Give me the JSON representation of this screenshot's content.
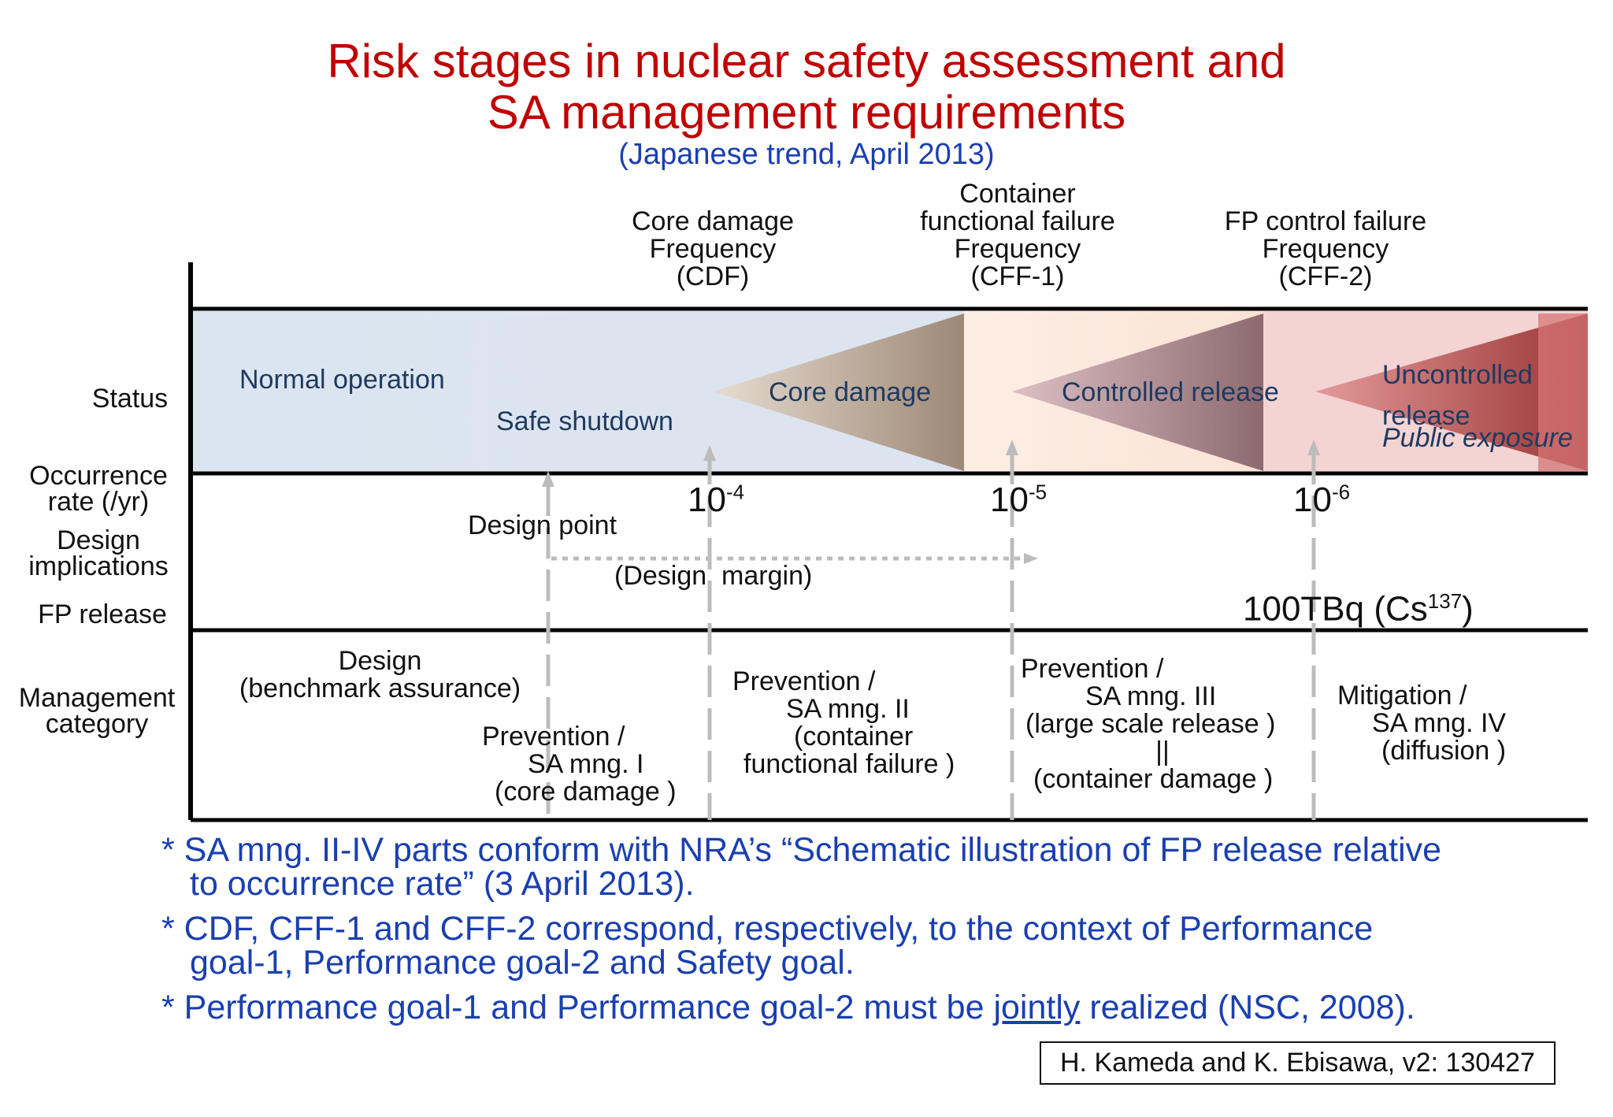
{
  "title": {
    "line1": "Risk stages in nuclear safety assessment and",
    "line2": "SA management requirements",
    "subtitle": "(Japanese trend, April 2013)"
  },
  "headers": {
    "cdf": [
      "Core damage",
      "Frequency",
      "(CDF)"
    ],
    "cff1": [
      "Container",
      "functional failure",
      "Frequency",
      "(CFF-1)"
    ],
    "cff2": [
      "FP control  failure",
      "Frequency",
      "(CFF-2)"
    ]
  },
  "row_labels": {
    "status": "Status",
    "occurrence": [
      "Occurrence",
      "rate (/yr)"
    ],
    "design": [
      "Design",
      "implications"
    ],
    "fp_release": "FP release",
    "management": [
      "Management",
      "category"
    ]
  },
  "status_band": {
    "normal_operation": "Normal  operation",
    "safe_shutdown": "Safe shutdown",
    "core_damage": "Core damage",
    "controlled_release": "Controlled release",
    "uncontrolled_release": [
      "Uncontrolled",
      "release"
    ],
    "public_exposure": "Public exposure"
  },
  "rates": {
    "r1_base": "10",
    "r1_exp": "-4",
    "r2_base": "10",
    "r2_exp": "-5",
    "r3_base": "10",
    "r3_exp": "-6"
  },
  "design": {
    "design_point": "Design point",
    "design_margin": "(Design  margin)"
  },
  "fp": {
    "value": "100TBq",
    "nuclide_open": "(Cs",
    "nuclide_sup": "137",
    "nuclide_close": ")"
  },
  "management": {
    "design": [
      "Design",
      "(benchmark assurance)"
    ],
    "sa1": [
      "Prevention /",
      "SA mng. I",
      "(core damage )"
    ],
    "sa2": [
      "Prevention /",
      "SA mng. II",
      "(container",
      "functional failure )"
    ],
    "sa3": [
      "Prevention /",
      "SA mng. III",
      "(large scale release )",
      "||",
      "(container damage )"
    ],
    "sa4": [
      "Mitigation /",
      "SA mng. IV",
      "(diffusion )"
    ]
  },
  "notes": {
    "n1_a": "* SA mng. II-IV parts conform with NRA’s “Schematic illustration of FP release relative",
    "n1_b": "to occurrence rate” (3 April 2013).",
    "n2_a": "* CDF, CFF-1 and CFF-2 correspond, respectively, to the context of  Performance",
    "n2_b": "goal-1, Performance goal-2 and Safety goal.",
    "n3_pre": "* Performance goal-1 and Performance goal-2 must be ",
    "n3_jointly": "jointly",
    "n3_post": " realized (NSC, 2008)."
  },
  "credit": "H. Kameda and K. Ebisawa, v2: 130427",
  "colors": {
    "title": "#c00000",
    "notes": "#1a3fb0",
    "normal_band": "#dce6f2",
    "controlled_band": "#fde9dd",
    "uncontrolled_band": "#f2c4c4"
  }
}
